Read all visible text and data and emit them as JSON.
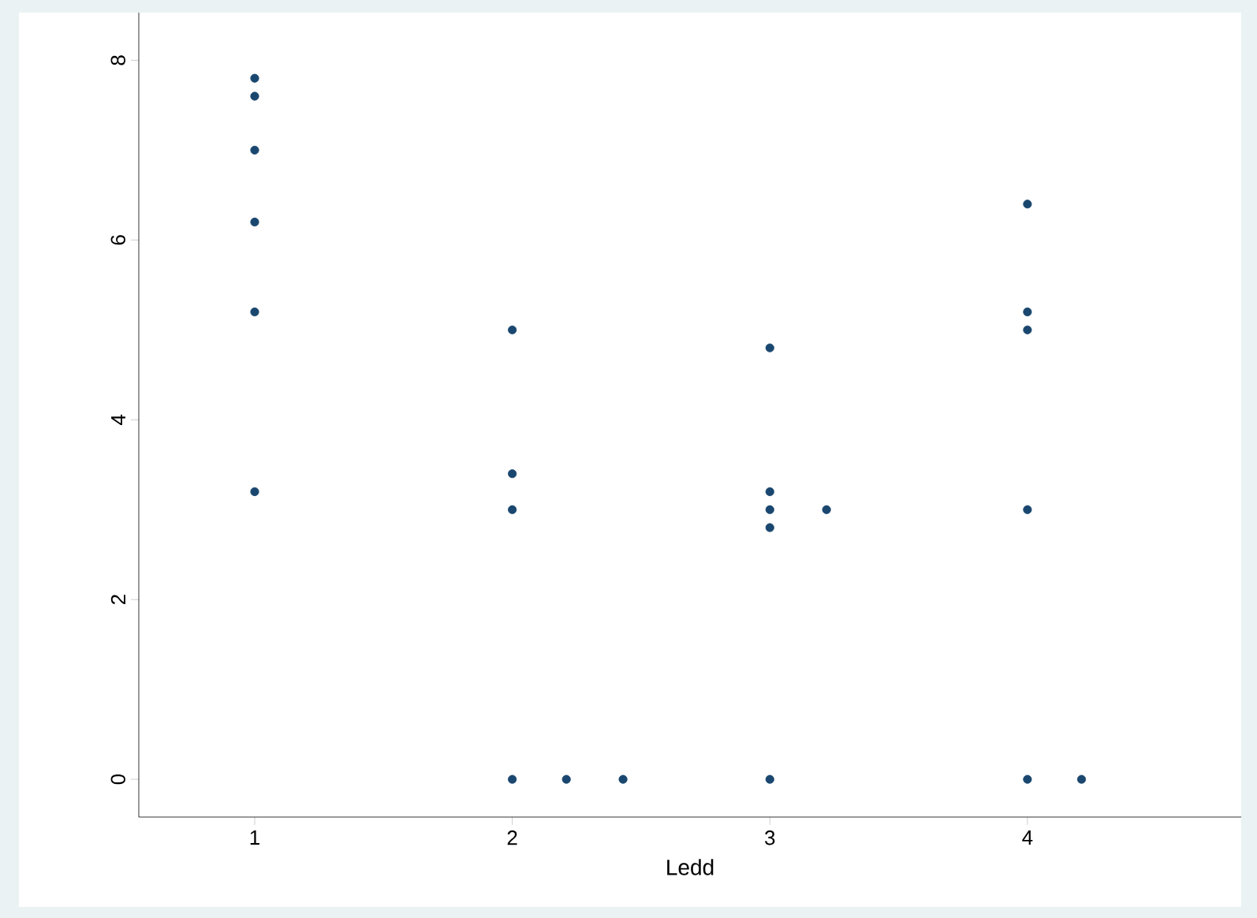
{
  "chart_data": {
    "type": "scatter",
    "xlabel": "Ledd",
    "xlim": [
      0.55,
      4.83
    ],
    "ylim": [
      -0.42,
      8.53
    ],
    "xticks": [
      1,
      2,
      3,
      4
    ],
    "yticks": [
      0,
      2,
      4,
      6,
      8
    ],
    "marker": "circle",
    "series": [
      {
        "color": "#1a476f",
        "x": [
          1,
          1,
          1,
          1,
          1,
          1,
          2,
          2,
          2,
          2,
          2.21,
          2.43,
          3,
          3,
          3,
          3,
          3,
          3.22,
          4,
          4,
          4,
          4,
          4,
          4.21
        ],
        "values": [
          7.8,
          7.6,
          7.0,
          6.2,
          5.2,
          3.2,
          5.0,
          3.4,
          3.0,
          0,
          0,
          0,
          4.8,
          3.2,
          3.0,
          2.8,
          0,
          3.0,
          6.4,
          5.2,
          5.0,
          3.0,
          0,
          0
        ]
      }
    ]
  }
}
